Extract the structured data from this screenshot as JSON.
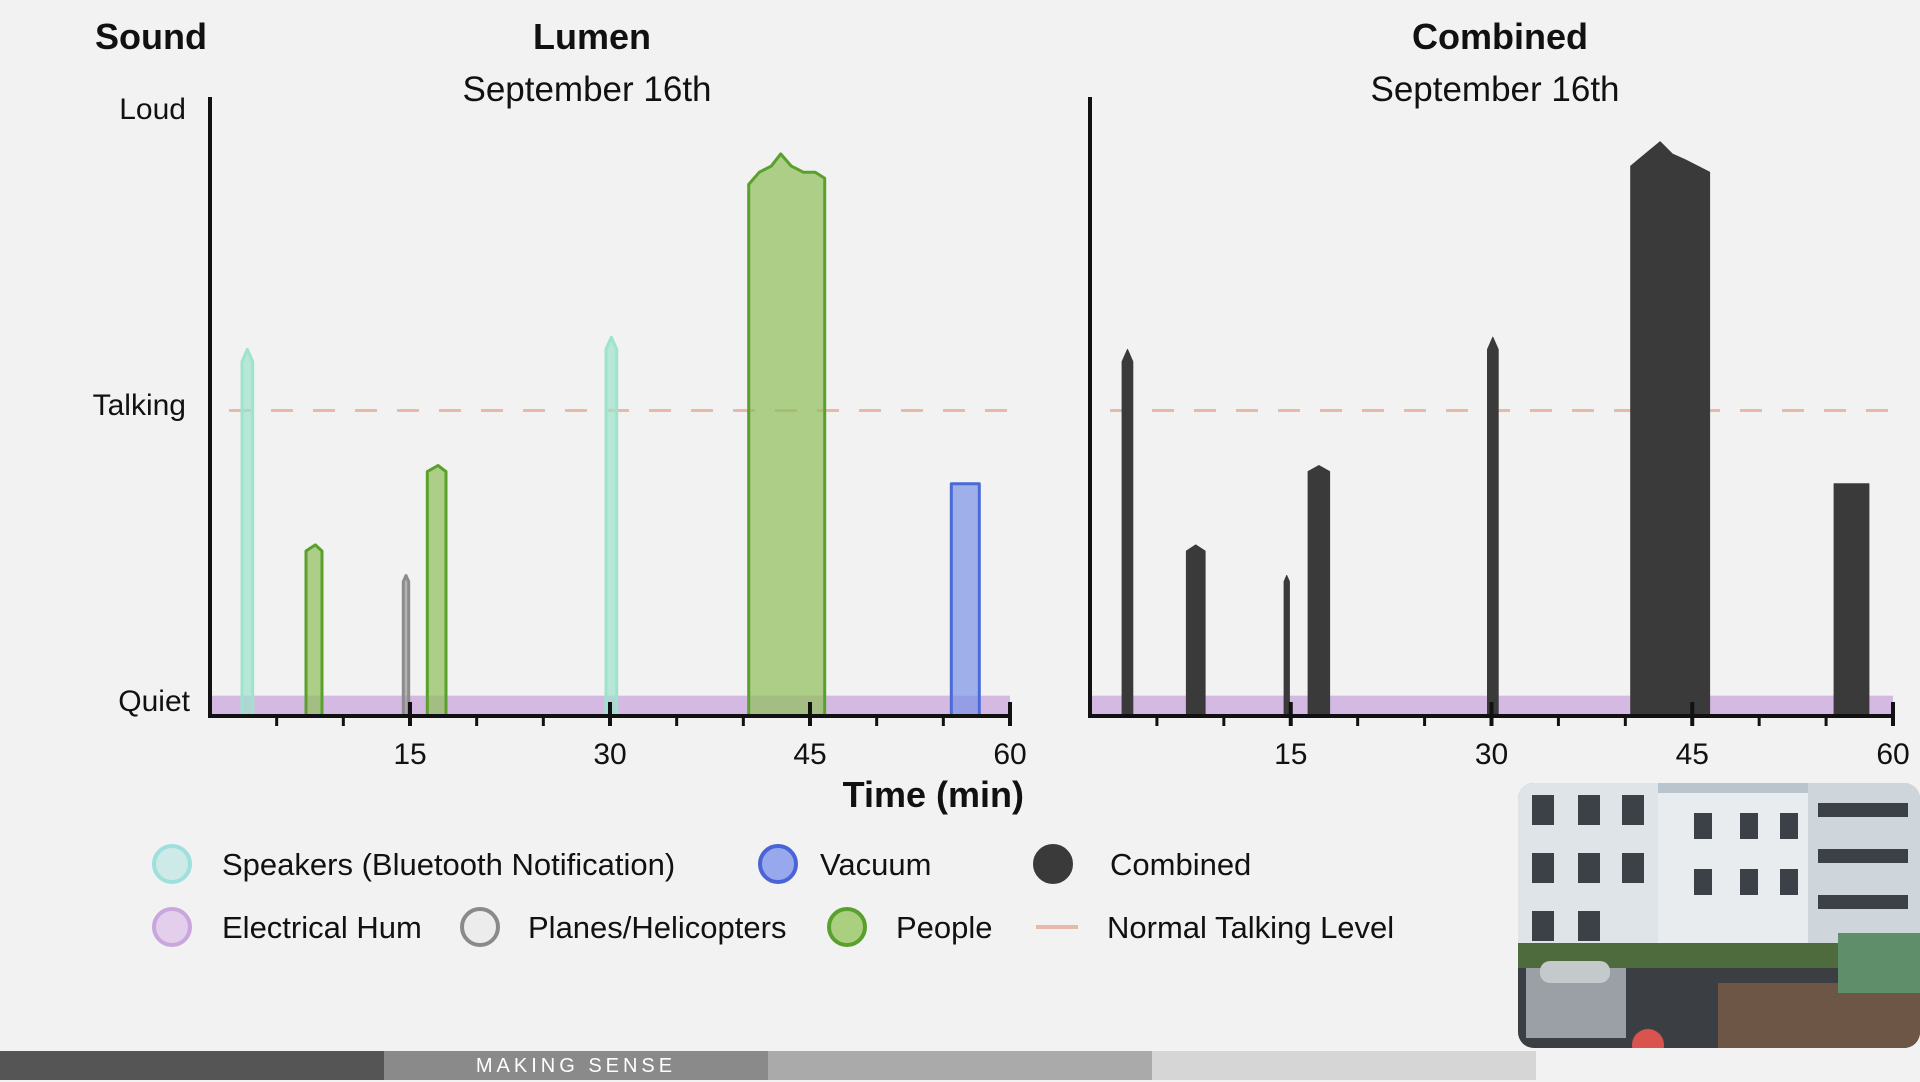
{
  "sound_label": "Sound",
  "y_levels": [
    "Loud",
    "Talking",
    "Quiet"
  ],
  "xlabel": "Time (min)",
  "footer_text": "MAKING SENSE",
  "chart_data": [
    {
      "type": "area",
      "title": "Lumen",
      "subtitle": "September 16th",
      "xlim": [
        0,
        60
      ],
      "ylim": [
        0,
        100
      ],
      "xticks": [
        15,
        30,
        45,
        60
      ],
      "y_tick_labels": [
        {
          "label": "Quiet",
          "value": 0
        },
        {
          "label": "Talking",
          "value": 50
        },
        {
          "label": "Loud",
          "value": 100
        }
      ],
      "reference_line": {
        "name": "Normal Talking Level",
        "value": 50
      },
      "series": [
        {
          "name": "Electrical Hum",
          "color": "#c9a6dd",
          "bands": [
            {
              "start": 0,
              "end": 60,
              "level": 3
            }
          ]
        },
        {
          "name": "Speakers (Bluetooth Notification)",
          "color": "#9ee3cc",
          "points": [
            [
              2.4,
              0
            ],
            [
              2.4,
              58
            ],
            [
              2.8,
              60
            ],
            [
              3.2,
              58
            ],
            [
              3.2,
              0
            ],
            [
              29.7,
              0
            ],
            [
              29.7,
              60
            ],
            [
              30.1,
              62
            ],
            [
              30.5,
              60
            ],
            [
              30.5,
              0
            ]
          ]
        },
        {
          "name": "People",
          "color": "#8fbf5a",
          "points": [
            [
              7.2,
              0
            ],
            [
              7.2,
              27
            ],
            [
              7.9,
              28
            ],
            [
              8.4,
              27
            ],
            [
              8.4,
              0
            ],
            [
              16.3,
              0
            ],
            [
              16.3,
              40
            ],
            [
              17.1,
              41
            ],
            [
              17.7,
              40
            ],
            [
              17.7,
              0
            ],
            [
              40.4,
              0
            ],
            [
              40.4,
              87
            ],
            [
              41.2,
              89
            ],
            [
              42.1,
              90
            ],
            [
              42.8,
              92
            ],
            [
              43.6,
              90
            ],
            [
              44.5,
              89
            ],
            [
              45.4,
              89
            ],
            [
              46.1,
              88
            ],
            [
              46.1,
              0
            ]
          ]
        },
        {
          "name": "Planes/Helicopters",
          "color": "#999999",
          "points": [
            [
              14.5,
              0
            ],
            [
              14.5,
              22
            ],
            [
              14.7,
              23
            ],
            [
              14.9,
              22
            ],
            [
              14.9,
              0
            ]
          ]
        },
        {
          "name": "Vacuum",
          "color": "#7b93e6",
          "points": [
            [
              55.6,
              0
            ],
            [
              55.6,
              38
            ],
            [
              57.7,
              38
            ],
            [
              57.7,
              0
            ]
          ]
        }
      ]
    },
    {
      "type": "area",
      "title": "Combined",
      "subtitle": "September 16th",
      "xlim": [
        0,
        60
      ],
      "ylim": [
        0,
        100
      ],
      "xticks": [
        15,
        30,
        45,
        60
      ],
      "reference_line": {
        "name": "Normal Talking Level",
        "value": 50
      },
      "series": [
        {
          "name": "Electrical Hum",
          "color": "#c9a6dd",
          "bands": [
            {
              "start": 0,
              "end": 60,
              "level": 3
            }
          ]
        },
        {
          "name": "Combined",
          "color": "#3a3a3a",
          "points": [
            [
              2.4,
              0
            ],
            [
              2.4,
              58
            ],
            [
              2.8,
              60
            ],
            [
              3.2,
              58
            ],
            [
              3.2,
              0
            ],
            [
              7.2,
              0
            ],
            [
              7.2,
              27
            ],
            [
              7.9,
              28
            ],
            [
              8.6,
              27
            ],
            [
              8.6,
              0
            ],
            [
              14.5,
              0
            ],
            [
              14.5,
              22
            ],
            [
              14.7,
              23
            ],
            [
              14.9,
              22
            ],
            [
              14.9,
              0
            ],
            [
              16.3,
              0
            ],
            [
              16.3,
              40
            ],
            [
              17.1,
              41
            ],
            [
              17.9,
              40
            ],
            [
              17.9,
              0
            ],
            [
              29.7,
              0
            ],
            [
              29.7,
              60
            ],
            [
              30.1,
              62
            ],
            [
              30.5,
              60
            ],
            [
              30.5,
              0
            ],
            [
              40.4,
              0
            ],
            [
              40.4,
              90
            ],
            [
              41.5,
              92
            ],
            [
              42.6,
              94
            ],
            [
              43.5,
              92
            ],
            [
              44.5,
              91
            ],
            [
              45.4,
              90
            ],
            [
              46.3,
              89
            ],
            [
              46.3,
              0
            ],
            [
              55.6,
              0
            ],
            [
              55.6,
              38
            ],
            [
              58.2,
              38
            ],
            [
              58.2,
              0
            ]
          ]
        }
      ]
    }
  ],
  "legend": [
    {
      "label": "Speakers (Bluetooth Notification)",
      "fill": "#cdeae8",
      "stroke": "#9ee0dd",
      "kind": "circle"
    },
    {
      "label": "Vacuum",
      "fill": "#97a9ec",
      "stroke": "#4a63d6",
      "kind": "circle"
    },
    {
      "label": "Combined",
      "fill": "#3a3a3a",
      "stroke": "#3a3a3a",
      "kind": "circle"
    },
    {
      "label": "Electrical Hum",
      "fill": "#e3cfec",
      "stroke": "#c9a6dd",
      "kind": "circle"
    },
    {
      "label": "Planes/Helicopters",
      "fill": "#ececec",
      "stroke": "#8a8a8a",
      "kind": "circle"
    },
    {
      "label": "People",
      "fill": "#a9cf7f",
      "stroke": "#5aa02c",
      "kind": "circle"
    },
    {
      "label": "Normal Talking Level",
      "fill": "none",
      "stroke": "#e8b9a8",
      "kind": "dash"
    }
  ]
}
